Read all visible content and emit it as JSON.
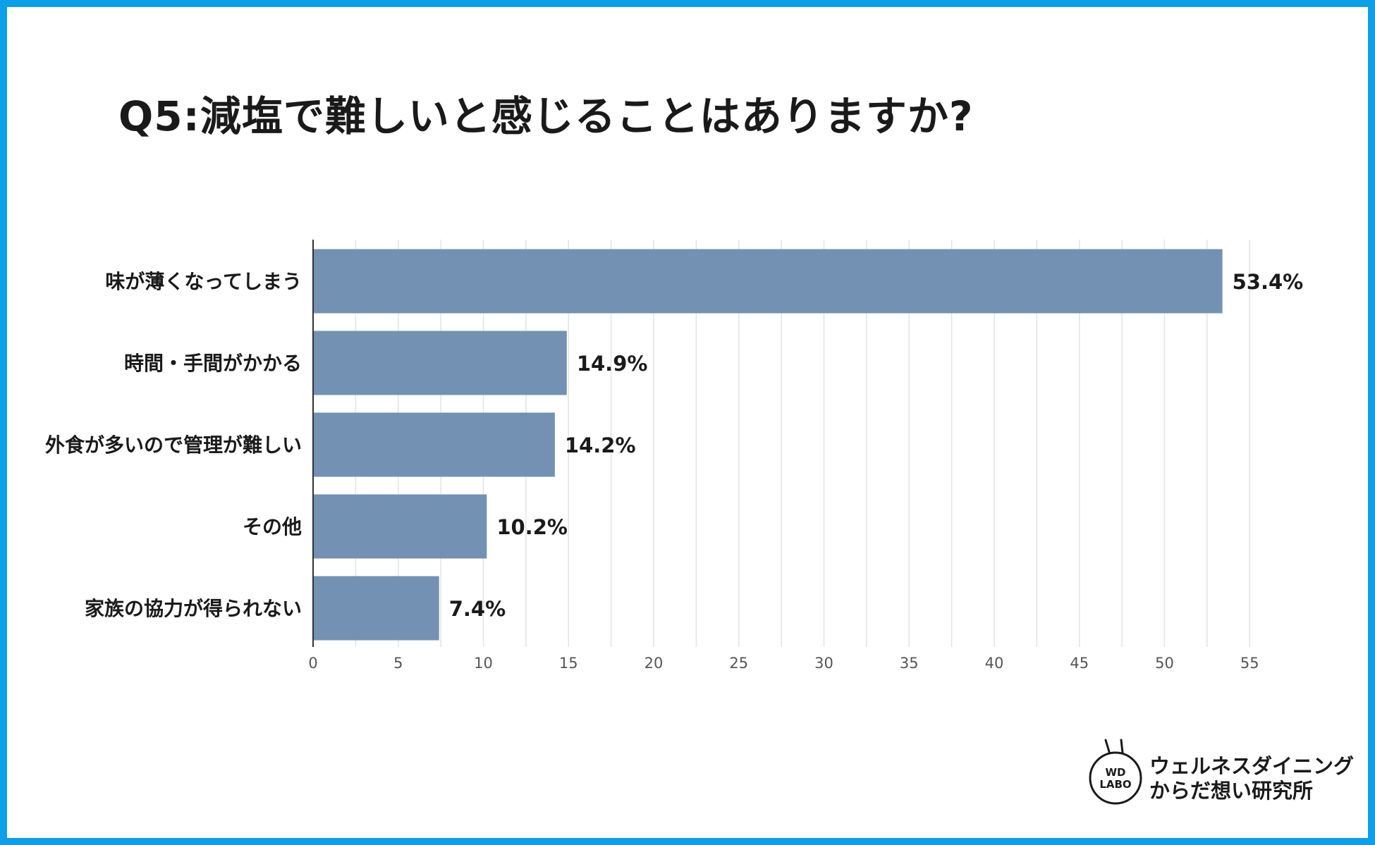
{
  "title": "Q5:減塩で難しいと感じることはありますか?",
  "colors": {
    "bar": "#7392b3",
    "frame": "#0d9fe8",
    "grid": "#e3e3e3",
    "axis": "#333333"
  },
  "chart_data": {
    "type": "bar",
    "orientation": "horizontal",
    "categories": [
      "味が薄くなってしまう",
      "時間・手間がかかる",
      "外食が多いので管理が難しい",
      "その他",
      "家族の協力が得られない"
    ],
    "values": [
      53.4,
      14.9,
      14.2,
      10.2,
      7.4
    ],
    "value_labels": [
      "53.4%",
      "14.9%",
      "14.2%",
      "10.2%",
      "7.4%"
    ],
    "xticks": [
      0,
      5,
      10,
      15,
      20,
      25,
      30,
      35,
      40,
      45,
      50,
      55
    ],
    "xlim": [
      0,
      55
    ],
    "grid": true
  },
  "brand": {
    "logo_text_line1": "WD",
    "logo_text_line2": "LABO",
    "name_line1": "ウェルネスダイニング",
    "name_line2": "からだ想い研究所"
  }
}
